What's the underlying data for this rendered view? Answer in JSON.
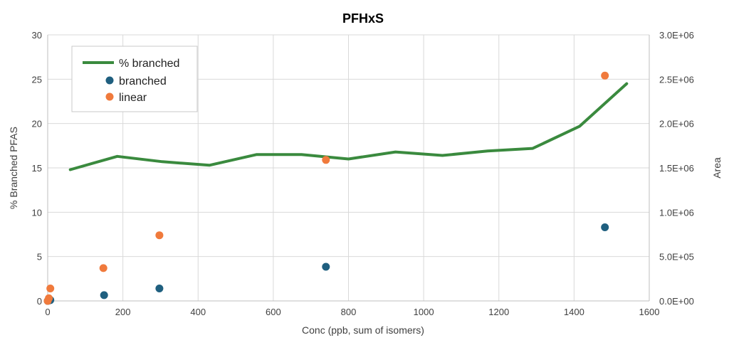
{
  "chart_data": {
    "type": "line",
    "title": "PFHxS",
    "xlabel": "Conc (ppb, sum of isomers)",
    "ylabel": "% Branched PFAS",
    "y2label": "Area",
    "xlim": [
      0,
      1600
    ],
    "ylim": [
      0,
      30
    ],
    "y2lim": [
      0,
      3000000
    ],
    "xticks": [
      0,
      200,
      400,
      600,
      800,
      1000,
      1200,
      1400,
      1600
    ],
    "yticks": [
      0,
      5,
      10,
      15,
      20,
      25,
      30
    ],
    "y2ticks": [
      0,
      500000,
      1000000,
      1500000,
      2000000,
      2500000,
      3000000
    ],
    "xtick_labels": [
      "0",
      "200",
      "400",
      "600",
      "800",
      "1000",
      "1200",
      "1400",
      "1600"
    ],
    "ytick_labels": [
      "0",
      "5",
      "10",
      "15",
      "20",
      "25",
      "30"
    ],
    "y2tick_labels": [
      "0.0E+00",
      "5.0E+05",
      "1.0E+06",
      "1.5E+06",
      "2.0E+06",
      "2.5E+06",
      "3.0E+06"
    ],
    "grid": true,
    "legend_position": "top-left",
    "series": [
      {
        "name": "% branched",
        "kind": "line",
        "axis": "left",
        "color": "#3a8a3e",
        "x": [
          60,
          185,
          305,
          430,
          555,
          675,
          800,
          925,
          1050,
          1170,
          1290,
          1415,
          1540
        ],
        "y": [
          14.8,
          16.3,
          15.7,
          15.3,
          16.5,
          16.5,
          16.0,
          16.8,
          16.4,
          16.9,
          17.2,
          19.7,
          24.5
        ]
      },
      {
        "name": "branched",
        "kind": "scatter",
        "axis": "right",
        "color": "#1f5f7f",
        "x": [
          0,
          3,
          7,
          150,
          297,
          740,
          1482
        ],
        "y": [
          0,
          4000,
          10000,
          65000,
          140000,
          385000,
          830000
        ]
      },
      {
        "name": "linear",
        "kind": "scatter",
        "axis": "right",
        "color": "#f07a3c",
        "x": [
          0,
          3,
          7,
          148,
          297,
          740,
          1482
        ],
        "y": [
          0,
          30000,
          140000,
          370000,
          740000,
          1590000,
          2540000
        ]
      }
    ]
  }
}
